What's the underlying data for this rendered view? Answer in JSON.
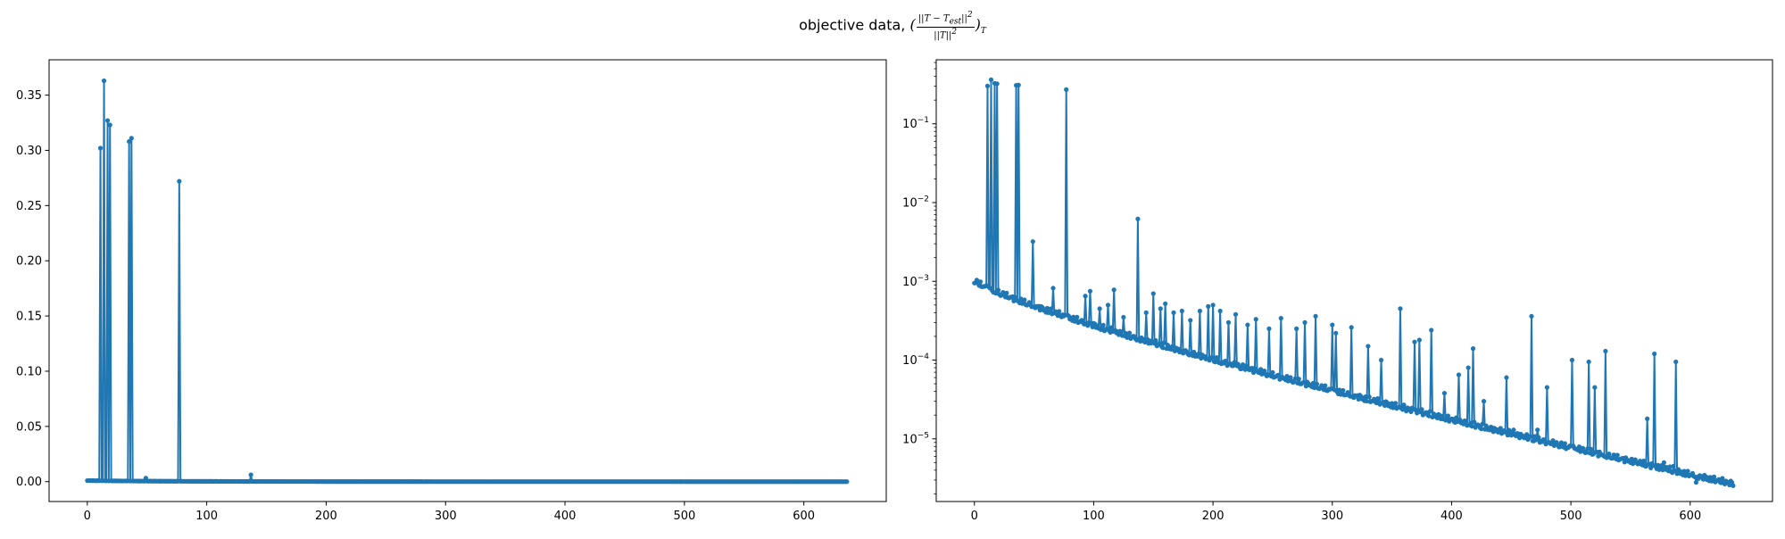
{
  "figure": {
    "title_text": "objective data,",
    "title_formula": {
      "numerator": "||T − T",
      "numerator_sub": "est",
      "numerator_tail": "||",
      "numerator_sup": "2",
      "denominator": "||T||",
      "denominator_sup": "2",
      "outer_sub": "T"
    }
  },
  "chart_data": [
    {
      "type": "line",
      "title": "",
      "xlabel": "",
      "ylabel": "",
      "yscale": "linear",
      "xlim": [
        -32,
        669
      ],
      "ylim": [
        -0.018,
        0.382
      ],
      "xticks": [
        0,
        100,
        200,
        300,
        400,
        500,
        600
      ],
      "yticks": [
        0.0,
        0.05,
        0.1,
        0.15,
        0.2,
        0.25,
        0.3,
        0.35
      ],
      "ytick_labels": [
        "0.00",
        "0.05",
        "0.10",
        "0.15",
        "0.20",
        "0.25",
        "0.30",
        "0.35"
      ],
      "marker": "dot",
      "color": "#1f77b4",
      "n_points": 637,
      "baseline": {
        "start": 0.00095,
        "end": 2.5e-06
      },
      "spikes": [
        [
          11,
          0.302
        ],
        [
          14,
          0.363
        ],
        [
          17,
          0.327
        ],
        [
          19,
          0.323
        ],
        [
          35,
          0.308
        ],
        [
          37,
          0.311
        ],
        [
          49,
          0.0032
        ],
        [
          77,
          0.272
        ],
        [
          137,
          0.0062
        ]
      ],
      "grid": false,
      "legend": "none"
    },
    {
      "type": "line",
      "title": "",
      "xlabel": "",
      "ylabel": "",
      "yscale": "log",
      "xlim": [
        -32,
        669
      ],
      "ylim": [
        1.6e-06,
        0.65
      ],
      "xticks": [
        0,
        100,
        200,
        300,
        400,
        500,
        600
      ],
      "yticks": [
        1e-05,
        0.0001,
        0.001,
        0.01,
        0.1
      ],
      "ytick_labels": [
        {
          "base": "10",
          "exp": "−5"
        },
        {
          "base": "10",
          "exp": "−4"
        },
        {
          "base": "10",
          "exp": "−3"
        },
        {
          "base": "10",
          "exp": "−2"
        },
        {
          "base": "10",
          "exp": "−1"
        }
      ],
      "marker": "dot",
      "color": "#1f77b4",
      "n_points": 637,
      "baseline": {
        "start": 0.00095,
        "end": 2.5e-06
      },
      "spikes": [
        [
          11,
          0.302
        ],
        [
          14,
          0.363
        ],
        [
          17,
          0.327
        ],
        [
          19,
          0.323
        ],
        [
          35,
          0.308
        ],
        [
          37,
          0.311
        ],
        [
          49,
          0.0032
        ],
        [
          66,
          0.00082
        ],
        [
          77,
          0.272
        ],
        [
          93,
          0.00065
        ],
        [
          97,
          0.00075
        ],
        [
          105,
          0.00045
        ],
        [
          112,
          0.0005
        ],
        [
          117,
          0.00078
        ],
        [
          125,
          0.00035
        ],
        [
          137,
          0.0062
        ],
        [
          144,
          0.0004
        ],
        [
          150,
          0.0007
        ],
        [
          156,
          0.00045
        ],
        [
          160,
          0.00052
        ],
        [
          167,
          0.0004
        ],
        [
          174,
          0.00042
        ],
        [
          181,
          0.00032
        ],
        [
          189,
          0.00042
        ],
        [
          196,
          0.00048
        ],
        [
          200,
          0.0005
        ],
        [
          206,
          0.00042
        ],
        [
          213,
          0.0003
        ],
        [
          219,
          0.00038
        ],
        [
          229,
          0.00028
        ],
        [
          236,
          0.00033
        ],
        [
          247,
          0.00025
        ],
        [
          257,
          0.00034
        ],
        [
          270,
          0.00025
        ],
        [
          277,
          0.0003
        ],
        [
          286,
          0.00036
        ],
        [
          300,
          0.00028
        ],
        [
          303,
          0.00022
        ],
        [
          316,
          0.00026
        ],
        [
          330,
          0.00015
        ],
        [
          341,
          0.0001
        ],
        [
          357,
          0.00045
        ],
        [
          369,
          0.00017
        ],
        [
          373,
          0.00018
        ],
        [
          383,
          0.00024
        ],
        [
          394,
          3.8e-05
        ],
        [
          406,
          6.5e-05
        ],
        [
          414,
          8e-05
        ],
        [
          418,
          0.00014
        ],
        [
          427,
          3e-05
        ],
        [
          446,
          6e-05
        ],
        [
          452,
          1.3e-05
        ],
        [
          467,
          0.00036
        ],
        [
          472,
          1.3e-05
        ],
        [
          480,
          4.5e-05
        ],
        [
          501,
          0.0001
        ],
        [
          515,
          9.5e-05
        ],
        [
          520,
          4.5e-05
        ],
        [
          529,
          0.00013
        ],
        [
          541,
          5.5e-06
        ],
        [
          555,
          5e-06
        ],
        [
          564,
          1.8e-05
        ],
        [
          570,
          0.00012
        ],
        [
          578,
          5e-06
        ],
        [
          586,
          4.5e-06
        ],
        [
          588,
          9.5e-05
        ],
        [
          605,
          2.8e-06
        ],
        [
          618,
          2.9e-06
        ]
      ],
      "grid": false,
      "legend": "none"
    }
  ]
}
